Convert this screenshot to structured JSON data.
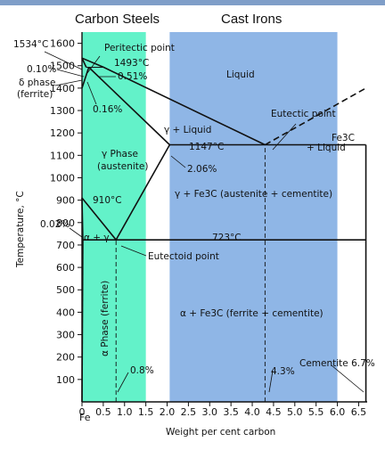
{
  "header": {
    "carbon_steels": "Carbon Steels",
    "cast_irons": "Cast Irons"
  },
  "chart_data": {
    "type": "phase-diagram",
    "xlabel": "Weight per cent carbon",
    "ylabel": "Temperature, °C",
    "xlim": [
      0,
      6.7
    ],
    "ylim": [
      0,
      1650
    ],
    "x_ticks": [
      "0",
      "0.5",
      "1.0",
      "1.5",
      "2.0",
      "2.5",
      "3.0",
      "3.5",
      "4.0",
      "4.5",
      "5.0",
      "5.5",
      "6.0",
      "6.5"
    ],
    "x_tick_values": [
      0,
      0.5,
      1.0,
      1.5,
      2.0,
      2.5,
      3.0,
      3.5,
      4.0,
      4.5,
      5.0,
      5.5,
      6.0,
      6.5
    ],
    "x_origin_label": "Fe",
    "y_ticks": [
      100,
      200,
      300,
      400,
      500,
      600,
      700,
      800,
      900,
      1000,
      1100,
      1200,
      1300,
      1400,
      1500,
      1600
    ],
    "bands": [
      {
        "name": "carbon-steels",
        "x_from": 0,
        "x_to": 1.5,
        "color": "#63f2c9"
      },
      {
        "name": "cast-irons",
        "x_from": 2.06,
        "x_to": 6.0,
        "color": "#8fb6e6"
      }
    ],
    "lines": {
      "liquidus_left": [
        [
          0,
          1534
        ],
        [
          0.51,
          1493
        ],
        [
          4.3,
          1147
        ]
      ],
      "solidus_left": [
        [
          0.16,
          1493
        ],
        [
          2.06,
          1147
        ]
      ],
      "liquidus_right": [
        [
          4.3,
          1147
        ],
        [
          6.67,
          1400
        ]
      ],
      "eutectic": [
        [
          2.06,
          1147
        ],
        [
          6.67,
          1147
        ]
      ],
      "a3": [
        [
          0,
          910
        ],
        [
          0.8,
          723
        ]
      ],
      "acm": [
        [
          0.8,
          723
        ],
        [
          2.06,
          1147
        ]
      ],
      "eutectoid": [
        [
          0.02,
          723
        ],
        [
          6.67,
          723
        ]
      ],
      "alpha_solvus": [
        [
          0,
          0
        ],
        [
          0.02,
          723
        ]
      ],
      "alpha_gamma_upper": [
        [
          0,
          910
        ],
        [
          0.02,
          723
        ]
      ],
      "peritectic": [
        [
          0.1,
          1493
        ],
        [
          0.51,
          1493
        ]
      ],
      "delta_solvus": [
        [
          0,
          1534
        ],
        [
          0.1,
          1493
        ]
      ],
      "delta_gamma": [
        [
          0,
          1400
        ],
        [
          0.16,
          1493
        ]
      ],
      "eutectoid_composition": [
        [
          0.8,
          0
        ],
        [
          0.8,
          723
        ]
      ],
      "eutectic_composition": [
        [
          4.3,
          0
        ],
        [
          4.3,
          1147
        ]
      ],
      "cementite": [
        [
          6.67,
          0
        ],
        [
          6.67,
          1147
        ]
      ]
    },
    "annotations": {
      "t1534": "1534°C",
      "peritectic_point": "Peritectic point",
      "t1493": "1493°C",
      "c010": "0.10%",
      "c051": "0.51%",
      "delta_phase_1": "δ phase",
      "delta_phase_2": "(ferrite)",
      "c016": "0.16%",
      "liquid": "Liquid",
      "eutectic_point": "Eutectic point",
      "fe3c_liquid_1": "Fe3C",
      "fe3c_liquid_2": "+ Liquid",
      "gamma_liquid": "γ + Liquid",
      "t1147": "1147°C",
      "gamma_phase_1": "γ Phase",
      "gamma_phase_2": "(austenite)",
      "c206": "2.06%",
      "gamma_fe3c": "γ + Fe3C (austenite + cementite)",
      "t910": "910°C",
      "c002": "0.02%",
      "alpha_gamma": "α + γ",
      "t723": "723°C",
      "eutectoid_point": "Eutectoid point",
      "alpha_phase": "α Phase (ferrite)",
      "alpha_fe3c": "α + Fe3C (ferrite + cementite)",
      "cementite": "Cementite 6.7%",
      "c43": "4.3%",
      "c08": "0.8%"
    }
  }
}
